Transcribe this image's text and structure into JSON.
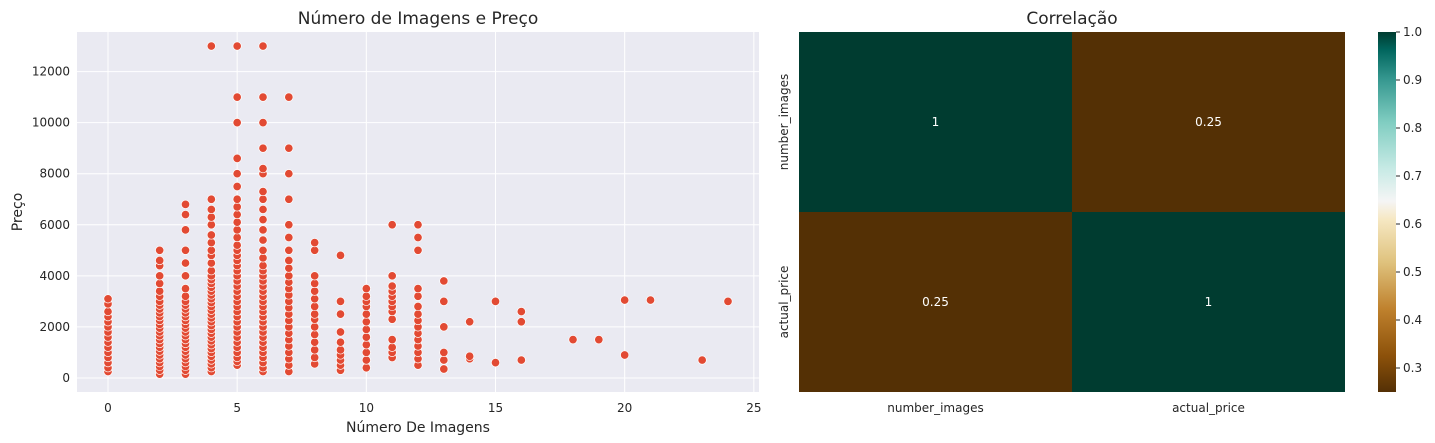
{
  "chart_data": [
    {
      "type": "scatter",
      "title": "Número de Imagens e Preço",
      "xlabel": "Número De Imagens",
      "ylabel": "Preço",
      "xlim": [
        -1.2,
        25.2
      ],
      "ylim": [
        -550,
        13550
      ],
      "xticks": [
        0,
        5,
        10,
        15,
        20,
        25
      ],
      "yticks": [
        0,
        2000,
        4000,
        6000,
        8000,
        10000,
        12000
      ],
      "grid": true,
      "colors": {
        "background": "#eaeaf2",
        "grid": "#ffffff",
        "marker": "#e24a33",
        "marker_edge": "#ffffff"
      },
      "points": [
        [
          0,
          250
        ],
        [
          0,
          400
        ],
        [
          0,
          600
        ],
        [
          0,
          800
        ],
        [
          0,
          1000
        ],
        [
          0,
          1200
        ],
        [
          0,
          1400
        ],
        [
          0,
          1600
        ],
        [
          0,
          1800
        ],
        [
          0,
          2000
        ],
        [
          0,
          2200
        ],
        [
          0,
          2400
        ],
        [
          0,
          2600
        ],
        [
          0,
          2900
        ],
        [
          0,
          3100
        ],
        [
          2,
          150
        ],
        [
          2,
          300
        ],
        [
          2,
          450
        ],
        [
          2,
          600
        ],
        [
          2,
          750
        ],
        [
          2,
          900
        ],
        [
          2,
          1050
        ],
        [
          2,
          1200
        ],
        [
          2,
          1350
        ],
        [
          2,
          1500
        ],
        [
          2,
          1650
        ],
        [
          2,
          1800
        ],
        [
          2,
          1950
        ],
        [
          2,
          2100
        ],
        [
          2,
          2250
        ],
        [
          2,
          2400
        ],
        [
          2,
          2550
        ],
        [
          2,
          2700
        ],
        [
          2,
          2850
        ],
        [
          2,
          3000
        ],
        [
          2,
          3200
        ],
        [
          2,
          3400
        ],
        [
          2,
          3700
        ],
        [
          2,
          4000
        ],
        [
          2,
          4400
        ],
        [
          2,
          4600
        ],
        [
          2,
          5000
        ],
        [
          3,
          150
        ],
        [
          3,
          300
        ],
        [
          3,
          450
        ],
        [
          3,
          600
        ],
        [
          3,
          750
        ],
        [
          3,
          900
        ],
        [
          3,
          1050
        ],
        [
          3,
          1200
        ],
        [
          3,
          1350
        ],
        [
          3,
          1500
        ],
        [
          3,
          1650
        ],
        [
          3,
          1800
        ],
        [
          3,
          1950
        ],
        [
          3,
          2100
        ],
        [
          3,
          2250
        ],
        [
          3,
          2400
        ],
        [
          3,
          2550
        ],
        [
          3,
          2700
        ],
        [
          3,
          2850
        ],
        [
          3,
          3000
        ],
        [
          3,
          3200
        ],
        [
          3,
          3500
        ],
        [
          3,
          4000
        ],
        [
          3,
          4500
        ],
        [
          3,
          5000
        ],
        [
          3,
          5800
        ],
        [
          3,
          6400
        ],
        [
          3,
          6800
        ],
        [
          4,
          250
        ],
        [
          4,
          400
        ],
        [
          4,
          550
        ],
        [
          4,
          700
        ],
        [
          4,
          850
        ],
        [
          4,
          1000
        ],
        [
          4,
          1150
        ],
        [
          4,
          1300
        ],
        [
          4,
          1450
        ],
        [
          4,
          1600
        ],
        [
          4,
          1750
        ],
        [
          4,
          1900
        ],
        [
          4,
          2050
        ],
        [
          4,
          2200
        ],
        [
          4,
          2350
        ],
        [
          4,
          2500
        ],
        [
          4,
          2650
        ],
        [
          4,
          2800
        ],
        [
          4,
          2950
        ],
        [
          4,
          3100
        ],
        [
          4,
          3250
        ],
        [
          4,
          3400
        ],
        [
          4,
          3550
        ],
        [
          4,
          3700
        ],
        [
          4,
          3850
        ],
        [
          4,
          4000
        ],
        [
          4,
          4200
        ],
        [
          4,
          4500
        ],
        [
          4,
          4800
        ],
        [
          4,
          5000
        ],
        [
          4,
          5300
        ],
        [
          4,
          5600
        ],
        [
          4,
          6000
        ],
        [
          4,
          6300
        ],
        [
          4,
          6600
        ],
        [
          4,
          7000
        ],
        [
          4,
          13000
        ],
        [
          5,
          500
        ],
        [
          5,
          650
        ],
        [
          5,
          800
        ],
        [
          5,
          1000
        ],
        [
          5,
          1200
        ],
        [
          5,
          1400
        ],
        [
          5,
          1600
        ],
        [
          5,
          1800
        ],
        [
          5,
          2000
        ],
        [
          5,
          2200
        ],
        [
          5,
          2400
        ],
        [
          5,
          2600
        ],
        [
          5,
          2800
        ],
        [
          5,
          3000
        ],
        [
          5,
          3200
        ],
        [
          5,
          3400
        ],
        [
          5,
          3600
        ],
        [
          5,
          3800
        ],
        [
          5,
          4000
        ],
        [
          5,
          4200
        ],
        [
          5,
          4400
        ],
        [
          5,
          4600
        ],
        [
          5,
          4800
        ],
        [
          5,
          5000
        ],
        [
          5,
          5200
        ],
        [
          5,
          5500
        ],
        [
          5,
          5800
        ],
        [
          5,
          6100
        ],
        [
          5,
          6400
        ],
        [
          5,
          6700
        ],
        [
          5,
          7000
        ],
        [
          5,
          7500
        ],
        [
          5,
          8000
        ],
        [
          5,
          8600
        ],
        [
          5,
          10000
        ],
        [
          5,
          11000
        ],
        [
          5,
          13000
        ],
        [
          6,
          250
        ],
        [
          6,
          400
        ],
        [
          6,
          600
        ],
        [
          6,
          800
        ],
        [
          6,
          1000
        ],
        [
          6,
          1200
        ],
        [
          6,
          1400
        ],
        [
          6,
          1600
        ],
        [
          6,
          1800
        ],
        [
          6,
          2000
        ],
        [
          6,
          2200
        ],
        [
          6,
          2400
        ],
        [
          6,
          2600
        ],
        [
          6,
          2800
        ],
        [
          6,
          3000
        ],
        [
          6,
          3200
        ],
        [
          6,
          3400
        ],
        [
          6,
          3600
        ],
        [
          6,
          3800
        ],
        [
          6,
          4000
        ],
        [
          6,
          4200
        ],
        [
          6,
          4400
        ],
        [
          6,
          4700
        ],
        [
          6,
          5000
        ],
        [
          6,
          5400
        ],
        [
          6,
          5800
        ],
        [
          6,
          6200
        ],
        [
          6,
          6600
        ],
        [
          6,
          7000
        ],
        [
          6,
          7300
        ],
        [
          6,
          8000
        ],
        [
          6,
          8200
        ],
        [
          6,
          9000
        ],
        [
          6,
          10000
        ],
        [
          6,
          11000
        ],
        [
          6,
          13000
        ],
        [
          7,
          250
        ],
        [
          7,
          500
        ],
        [
          7,
          750
        ],
        [
          7,
          1000
        ],
        [
          7,
          1250
        ],
        [
          7,
          1500
        ],
        [
          7,
          1750
        ],
        [
          7,
          2000
        ],
        [
          7,
          2250
        ],
        [
          7,
          2500
        ],
        [
          7,
          2750
        ],
        [
          7,
          3000
        ],
        [
          7,
          3250
        ],
        [
          7,
          3500
        ],
        [
          7,
          3750
        ],
        [
          7,
          4000
        ],
        [
          7,
          4300
        ],
        [
          7,
          4600
        ],
        [
          7,
          5000
        ],
        [
          7,
          5500
        ],
        [
          7,
          6000
        ],
        [
          7,
          7000
        ],
        [
          7,
          8000
        ],
        [
          7,
          9000
        ],
        [
          7,
          11000
        ],
        [
          8,
          550
        ],
        [
          8,
          800
        ],
        [
          8,
          1100
        ],
        [
          8,
          1400
        ],
        [
          8,
          1700
        ],
        [
          8,
          2000
        ],
        [
          8,
          2300
        ],
        [
          8,
          2500
        ],
        [
          8,
          2800
        ],
        [
          8,
          3100
        ],
        [
          8,
          3400
        ],
        [
          8,
          3700
        ],
        [
          8,
          4000
        ],
        [
          8,
          5000
        ],
        [
          8,
          5300
        ],
        [
          9,
          300
        ],
        [
          9,
          500
        ],
        [
          9,
          700
        ],
        [
          9,
          900
        ],
        [
          9,
          1100
        ],
        [
          9,
          1400
        ],
        [
          9,
          1800
        ],
        [
          9,
          2500
        ],
        [
          9,
          3000
        ],
        [
          9,
          4800
        ],
        [
          10,
          400
        ],
        [
          10,
          700
        ],
        [
          10,
          1000
        ],
        [
          10,
          1300
        ],
        [
          10,
          1600
        ],
        [
          10,
          1900
        ],
        [
          10,
          2200
        ],
        [
          10,
          2500
        ],
        [
          10,
          2800
        ],
        [
          10,
          3000
        ],
        [
          10,
          3200
        ],
        [
          10,
          3500
        ],
        [
          11,
          800
        ],
        [
          11,
          1000
        ],
        [
          11,
          1200
        ],
        [
          11,
          1500
        ],
        [
          11,
          2300
        ],
        [
          11,
          2600
        ],
        [
          11,
          2800
        ],
        [
          11,
          3000
        ],
        [
          11,
          3200
        ],
        [
          11,
          3400
        ],
        [
          11,
          3600
        ],
        [
          11,
          4000
        ],
        [
          11,
          6000
        ],
        [
          12,
          500
        ],
        [
          12,
          750
        ],
        [
          12,
          1000
        ],
        [
          12,
          1250
        ],
        [
          12,
          1500
        ],
        [
          12,
          1750
        ],
        [
          12,
          2000
        ],
        [
          12,
          2250
        ],
        [
          12,
          2500
        ],
        [
          12,
          2800
        ],
        [
          12,
          3200
        ],
        [
          12,
          3500
        ],
        [
          12,
          5000
        ],
        [
          12,
          5500
        ],
        [
          12,
          6000
        ],
        [
          13,
          350
        ],
        [
          13,
          700
        ],
        [
          13,
          1000
        ],
        [
          13,
          2000
        ],
        [
          13,
          3000
        ],
        [
          13,
          3800
        ],
        [
          14,
          750
        ],
        [
          14,
          850
        ],
        [
          14,
          2200
        ],
        [
          15,
          600
        ],
        [
          15,
          3000
        ],
        [
          16,
          700
        ],
        [
          16,
          2200
        ],
        [
          16,
          2600
        ],
        [
          18,
          1500
        ],
        [
          19,
          1500
        ],
        [
          20,
          900
        ],
        [
          20,
          3050
        ],
        [
          21,
          3050
        ],
        [
          23,
          700
        ],
        [
          24,
          3000
        ]
      ]
    },
    {
      "type": "heatmap",
      "title": "Correlação",
      "row_labels": [
        "number_images",
        "actual_price"
      ],
      "col_labels": [
        "number_images",
        "actual_price"
      ],
      "values": [
        [
          1,
          0.25
        ],
        [
          0.25,
          1
        ]
      ],
      "annotations": [
        [
          "1",
          "0.25"
        ],
        [
          "0.25",
          "1"
        ]
      ],
      "colormap": "BrBG",
      "vmin": 0.25,
      "vmax": 1.0,
      "colorbar_ticks": [
        "0.3",
        "0.4",
        "0.5",
        "0.6",
        "0.7",
        "0.8",
        "0.9",
        "1.0"
      ],
      "colorbar_tick_values": [
        0.3,
        0.4,
        0.5,
        0.6,
        0.7,
        0.8,
        0.9,
        1.0
      ]
    }
  ]
}
